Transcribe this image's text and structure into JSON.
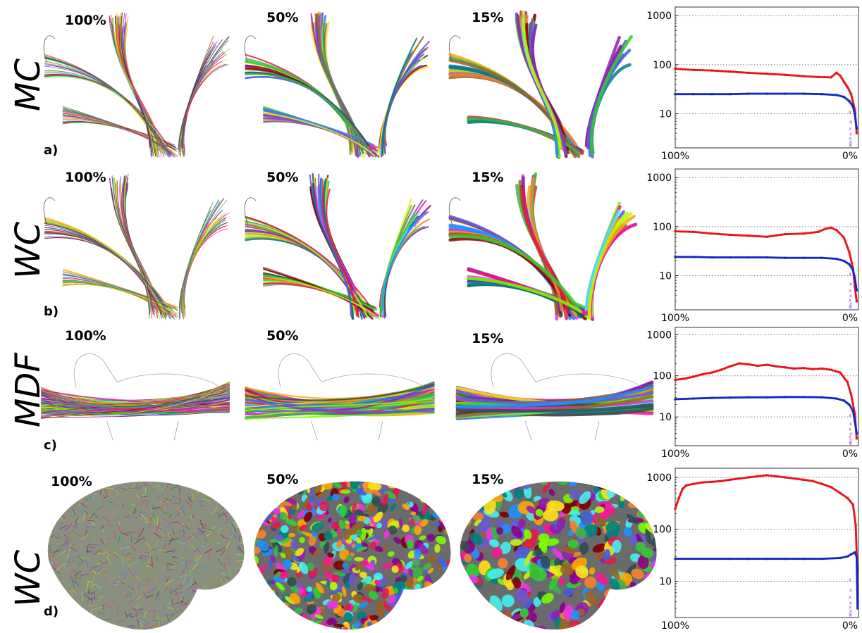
{
  "rows": [
    {
      "id": "a",
      "method": "MC",
      "letter": "a)",
      "percent_labels": [
        "100%",
        "50%",
        "15%"
      ],
      "view": "tract"
    },
    {
      "id": "b",
      "method": "WC",
      "letter": "b)",
      "percent_labels": [
        "100%",
        "50%",
        "15%"
      ],
      "view": "tract"
    },
    {
      "id": "c",
      "method": "MDF",
      "letter": "c)",
      "percent_labels": [
        "100%",
        "50%",
        "15%"
      ],
      "view": "horizontal"
    },
    {
      "id": "d",
      "method": "WC",
      "letter": "d)",
      "percent_labels": [
        "100%",
        "50%",
        "15%"
      ],
      "view": "brain"
    }
  ],
  "colors": {
    "red_series": "#e8141c",
    "blue_series": "#1526c8",
    "grid": "#777777",
    "purple_tail": "#9d4fd0"
  },
  "chart_data": [
    {
      "type": "scatter",
      "panel": "a",
      "yscale": "log",
      "ylim": [
        2,
        1500
      ],
      "yticks": [
        10,
        100,
        1000
      ],
      "grid": "horizontal dotted",
      "xtick_labels": [
        "100%",
        "0%"
      ],
      "xlim": [
        100,
        0
      ],
      "series": [
        {
          "color": "red",
          "x": [
            100,
            90,
            80,
            70,
            60,
            50,
            40,
            30,
            22,
            15,
            12,
            10,
            8,
            6,
            4,
            2,
            1
          ],
          "y": [
            82,
            78,
            76,
            72,
            68,
            65,
            62,
            58,
            56,
            55,
            68,
            60,
            45,
            35,
            25,
            12,
            4
          ]
        },
        {
          "color": "blue",
          "x": [
            100,
            90,
            80,
            70,
            60,
            50,
            40,
            30,
            20,
            12,
            8,
            5,
            3,
            2,
            1
          ],
          "y": [
            25,
            25,
            25,
            25,
            25.5,
            25.5,
            25.5,
            25.5,
            25,
            24,
            22,
            18,
            14,
            10,
            5
          ]
        }
      ]
    },
    {
      "type": "scatter",
      "panel": "b",
      "yscale": "log",
      "ylim": [
        2,
        1500
      ],
      "yticks": [
        10,
        100,
        1000
      ],
      "grid": "horizontal dotted",
      "xtick_labels": [
        "100%",
        "0%"
      ],
      "xlim": [
        100,
        0
      ],
      "series": [
        {
          "color": "red",
          "x": [
            100,
            90,
            80,
            70,
            60,
            50,
            40,
            30,
            22,
            18,
            15,
            12,
            8,
            5,
            3,
            2,
            1
          ],
          "y": [
            80,
            78,
            72,
            68,
            65,
            62,
            70,
            72,
            78,
            90,
            95,
            85,
            60,
            30,
            14,
            6,
            3
          ]
        },
        {
          "color": "blue",
          "x": [
            100,
            90,
            80,
            70,
            60,
            50,
            40,
            30,
            20,
            12,
            8,
            5,
            3,
            2,
            1
          ],
          "y": [
            24,
            24,
            23.5,
            23.5,
            23.5,
            23.5,
            23,
            23,
            23,
            22,
            20,
            17,
            13,
            9,
            5
          ]
        }
      ]
    },
    {
      "type": "scatter",
      "panel": "c",
      "yscale": "log",
      "ylim": [
        2,
        1500
      ],
      "yticks": [
        10,
        100,
        1000
      ],
      "grid": "horizontal dotted",
      "xtick_labels": [
        "100%",
        "0%"
      ],
      "xlim": [
        100,
        0
      ],
      "series": [
        {
          "color": "red",
          "x": [
            100,
            95,
            90,
            85,
            80,
            75,
            70,
            65,
            60,
            55,
            50,
            45,
            40,
            35,
            30,
            25,
            20,
            15,
            10,
            6,
            4,
            2,
            1
          ],
          "y": [
            80,
            85,
            95,
            110,
            120,
            140,
            170,
            200,
            190,
            175,
            185,
            170,
            160,
            150,
            155,
            145,
            150,
            140,
            120,
            70,
            35,
            12,
            3
          ]
        },
        {
          "color": "blue",
          "x": [
            100,
            90,
            80,
            70,
            60,
            50,
            40,
            30,
            20,
            12,
            8,
            5,
            3,
            2,
            1
          ],
          "y": [
            27,
            28,
            29,
            29.5,
            30,
            30,
            30.5,
            30.5,
            30,
            28,
            25,
            20,
            14,
            8,
            4
          ]
        }
      ]
    },
    {
      "type": "scatter",
      "panel": "d",
      "yscale": "log",
      "ylim": [
        2,
        1500
      ],
      "yticks": [
        10,
        100,
        1000
      ],
      "grid": "horizontal dotted",
      "xtick_labels": [
        "100%",
        "0%"
      ],
      "xlim": [
        100,
        0
      ],
      "series": [
        {
          "color": "red",
          "x": [
            100,
            98,
            96,
            94,
            90,
            85,
            80,
            75,
            70,
            65,
            60,
            55,
            50,
            45,
            40,
            35,
            30,
            25,
            20,
            15,
            10,
            6,
            3,
            1.5,
            0.5
          ],
          "y": [
            250,
            400,
            600,
            700,
            750,
            800,
            820,
            850,
            900,
            950,
            1000,
            1050,
            1100,
            1050,
            1000,
            950,
            900,
            850,
            750,
            650,
            500,
            400,
            300,
            120,
            10
          ]
        },
        {
          "color": "blue",
          "x": [
            100,
            90,
            80,
            70,
            60,
            50,
            40,
            30,
            20,
            10,
            6,
            4,
            2,
            1,
            0.5
          ],
          "y": [
            27,
            27,
            27,
            27,
            27,
            27,
            27,
            27,
            27,
            28,
            30,
            33,
            36,
            30,
            3
          ]
        }
      ]
    }
  ]
}
